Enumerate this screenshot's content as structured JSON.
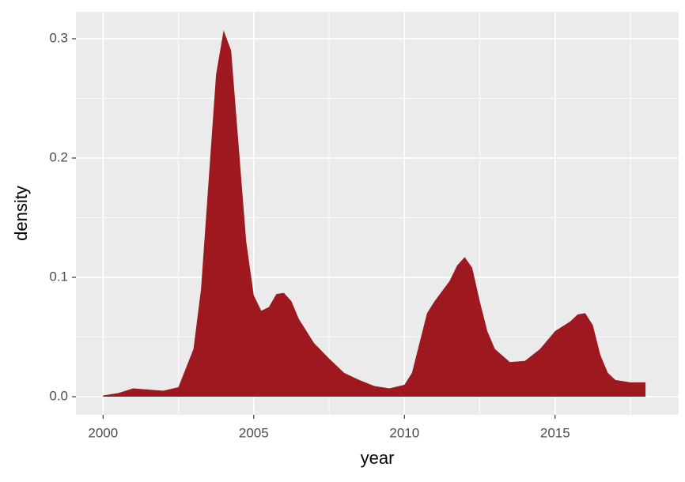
{
  "chart_data": {
    "type": "area",
    "x_label": "year",
    "y_label": "density",
    "x": [
      2000,
      2000.5,
      2001,
      2001.5,
      2002,
      2002.5,
      2003,
      2003.25,
      2003.5,
      2003.75,
      2004,
      2004.25,
      2004.5,
      2004.75,
      2005,
      2005.25,
      2005.5,
      2005.75,
      2006,
      2006.25,
      2006.5,
      2007,
      2007.5,
      2008,
      2008.5,
      2009,
      2009.5,
      2010,
      2010.25,
      2010.5,
      2010.75,
      2011,
      2011.5,
      2011.75,
      2012,
      2012.25,
      2012.5,
      2012.75,
      2013,
      2013.5,
      2014,
      2014.5,
      2015,
      2015.5,
      2015.75,
      2016,
      2016.25,
      2016.5,
      2016.75,
      2017,
      2017.5,
      2018
    ],
    "values": [
      0.001,
      0.003,
      0.007,
      0.006,
      0.005,
      0.008,
      0.04,
      0.09,
      0.18,
      0.27,
      0.307,
      0.29,
      0.21,
      0.13,
      0.085,
      0.072,
      0.075,
      0.086,
      0.087,
      0.08,
      0.065,
      0.045,
      0.032,
      0.02,
      0.014,
      0.009,
      0.007,
      0.01,
      0.02,
      0.045,
      0.07,
      0.08,
      0.097,
      0.11,
      0.117,
      0.108,
      0.08,
      0.055,
      0.04,
      0.029,
      0.03,
      0.04,
      0.055,
      0.063,
      0.069,
      0.07,
      0.06,
      0.035,
      0.02,
      0.014,
      0.012,
      0.012
    ],
    "color": "#9e1820",
    "xlim": [
      1999.1,
      2019.1
    ],
    "ylim": [
      -0.0152,
      0.3225
    ],
    "xticks": [
      2000,
      2005,
      2010,
      2015
    ],
    "yticks": [
      {
        "value": 0,
        "label": "0.0"
      },
      {
        "value": 0.1,
        "label": "0.1"
      },
      {
        "value": 0.2,
        "label": "0.2"
      },
      {
        "value": 0.3,
        "label": "0.3"
      }
    ],
    "x_minor_grid": [
      2002.5,
      2007.5,
      2012.5,
      2017.5
    ],
    "y_minor_grid": [
      0.05,
      0.15,
      0.25
    ],
    "grid": true
  }
}
